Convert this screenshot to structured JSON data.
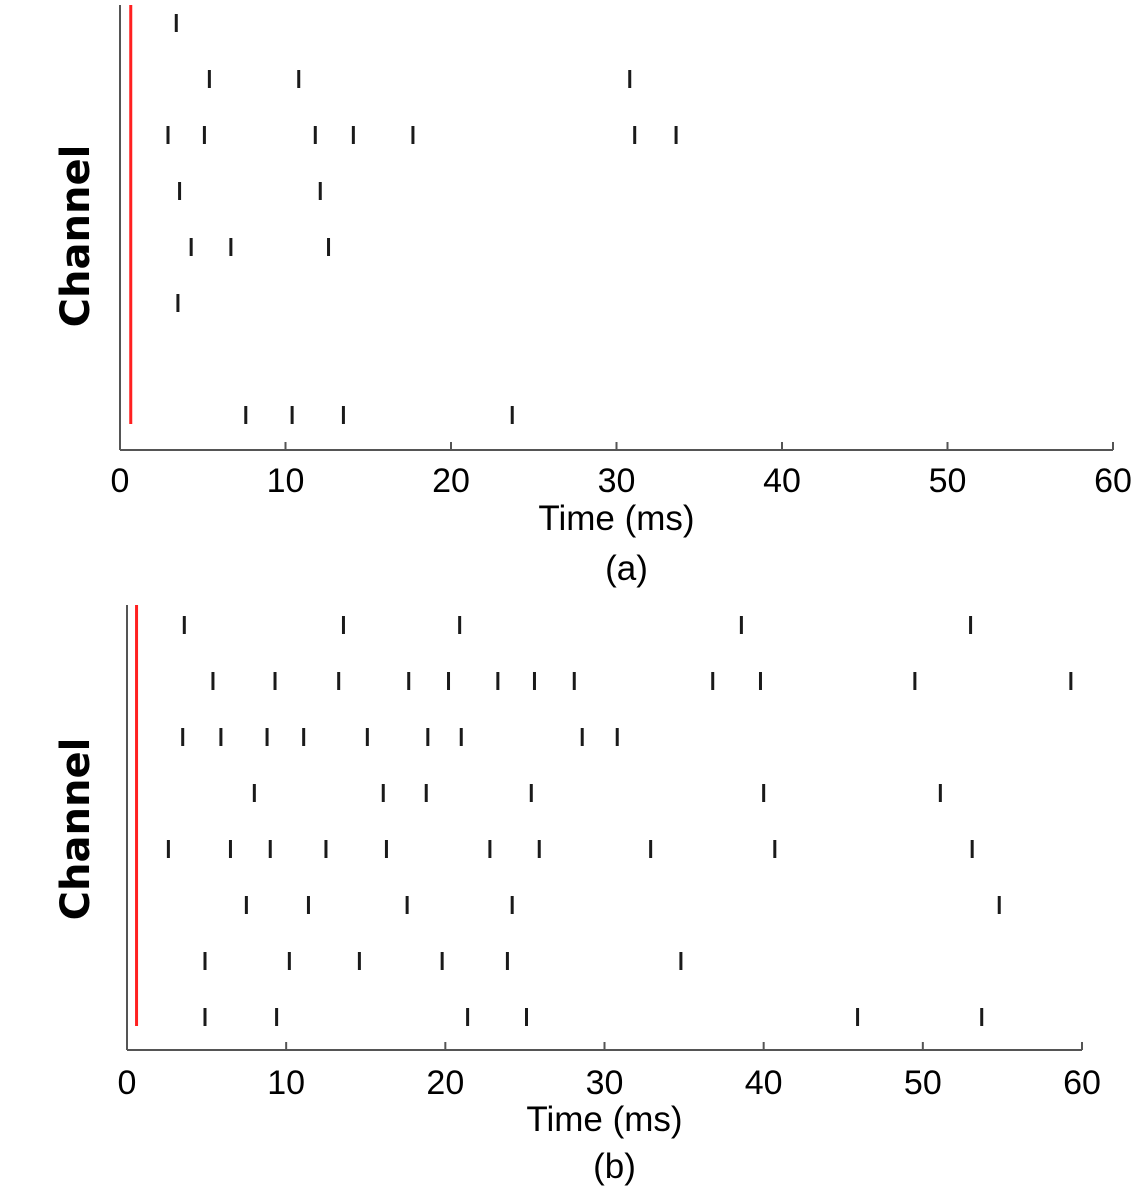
{
  "chart_data": [
    {
      "type": "scatter",
      "subtype": "raster",
      "caption": "(a)",
      "xlabel": "Time (ms)",
      "ylabel": "Channel",
      "xlim": [
        0,
        60
      ],
      "xticks": [
        "0",
        "10",
        "20",
        "30",
        "40",
        "50",
        "60"
      ],
      "stimulus_line": {
        "time": 0.65,
        "color": "#ff2020"
      },
      "spike_color": "#1a1a1a",
      "channels": [
        [
          3.4
        ],
        [
          5.4,
          10.8,
          30.8
        ],
        [
          2.9,
          5.1,
          11.8,
          14.1,
          17.7,
          31.1,
          33.6
        ],
        [
          3.6,
          12.1
        ],
        [
          4.3,
          6.7,
          12.6
        ],
        [
          3.5
        ],
        [],
        [
          7.6,
          10.4,
          13.5,
          23.7
        ]
      ]
    },
    {
      "type": "scatter",
      "subtype": "raster",
      "caption": "(b)",
      "xlabel": "Time (ms)",
      "ylabel": "Channel",
      "xlim": [
        0,
        60
      ],
      "xticks": [
        "0",
        "10",
        "20",
        "30",
        "40",
        "50",
        "60"
      ],
      "stimulus_line": {
        "time": 0.6,
        "color": "#ff2020"
      },
      "spike_color": "#1a1a1a",
      "channels": [
        [
          3.6,
          13.6,
          20.9,
          38.6,
          53.0
        ],
        [
          5.4,
          9.3,
          13.3,
          17.7,
          20.2,
          23.3,
          25.6,
          28.1,
          36.8,
          39.8,
          49.5,
          59.3
        ],
        [
          3.5,
          5.9,
          8.8,
          11.1,
          15.1,
          18.9,
          21.0,
          28.6,
          30.8
        ],
        [
          8.0,
          16.1,
          18.8,
          25.4,
          40.0,
          51.1
        ],
        [
          2.6,
          6.5,
          9.0,
          12.5,
          16.3,
          22.8,
          25.9,
          32.9,
          40.7,
          53.1
        ],
        [
          7.5,
          11.4,
          17.6,
          24.2,
          54.8
        ],
        [
          4.9,
          10.2,
          14.6,
          19.8,
          23.9,
          34.8
        ],
        [
          4.9,
          9.4,
          21.4,
          25.1,
          45.9,
          53.7
        ]
      ]
    }
  ]
}
